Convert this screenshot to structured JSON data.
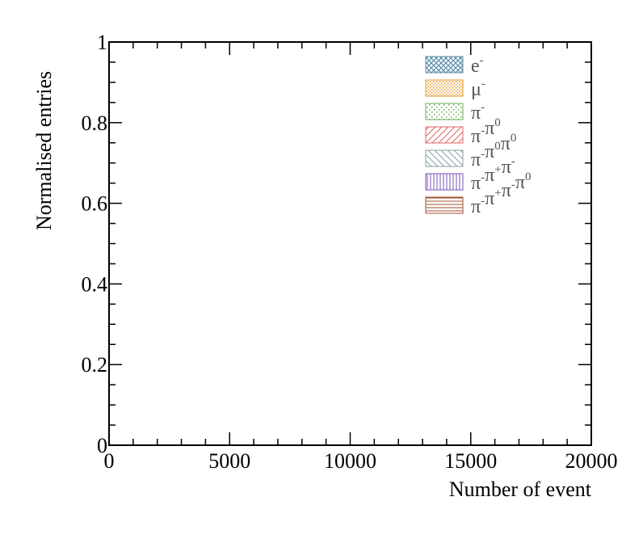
{
  "chart_data": {
    "type": "bar",
    "title": "",
    "xlabel": "Number of event",
    "ylabel": "Normalised entries",
    "xlim": [
      0,
      20000
    ],
    "ylim": [
      0,
      1
    ],
    "x_ticks": [
      0,
      5000,
      10000,
      15000,
      20000
    ],
    "x_tick_labels": [
      "0",
      "5000",
      "10000",
      "15000",
      "20000"
    ],
    "y_ticks": [
      0,
      0.2,
      0.4,
      0.6,
      0.8,
      1
    ],
    "y_tick_labels": [
      "0",
      "0.2",
      "0.4",
      "0.6",
      "0.8",
      "1"
    ],
    "grid": false,
    "legend_position": "top-right",
    "series": [
      {
        "name": "e-",
        "label": {
          "base": "e",
          "sup": "-"
        },
        "color": "#5b8fa8",
        "pattern": "crosshatch",
        "values": [
          0
        ]
      },
      {
        "name": "μ-",
        "label": {
          "base": "μ",
          "sup": "-"
        },
        "color": "#e39a2b",
        "pattern": "dots-dense",
        "values": [
          0
        ]
      },
      {
        "name": "π-",
        "label": {
          "base": "π",
          "sup": "-"
        },
        "color": "#6aa84f",
        "pattern": "dots-sparse",
        "values": [
          0
        ]
      },
      {
        "name": "π-π0",
        "label": {
          "base": "π",
          "sup": "-",
          "base2": "π",
          "sup2": "0"
        },
        "color": "#e06666",
        "pattern": "diag-up",
        "values": [
          0
        ]
      },
      {
        "name": "π-π0π0",
        "label": {
          "base": "π",
          "sup": "-",
          "base2": "π",
          "sup2": "0",
          "base3": "π",
          "sup3": "0"
        },
        "color": "#8aa0a6",
        "pattern": "diag-down",
        "values": [
          0
        ]
      },
      {
        "name": "π-π+π-",
        "label": {
          "base": "π",
          "sup": "-",
          "base2": "π",
          "sup2": "+",
          "base3": "π",
          "sup3": "-"
        },
        "color": "#7b52b9",
        "pattern": "vertical",
        "values": [
          0
        ]
      },
      {
        "name": "π-π+π-π0",
        "label": {
          "base": "π",
          "sup": "-",
          "base2": "π",
          "sup2": "+",
          "base3": "π",
          "sup3": "-",
          "base4": "π",
          "sup4": "0"
        },
        "color": "#a0522d",
        "pattern": "horizontal",
        "values": [
          0
        ]
      }
    ]
  }
}
